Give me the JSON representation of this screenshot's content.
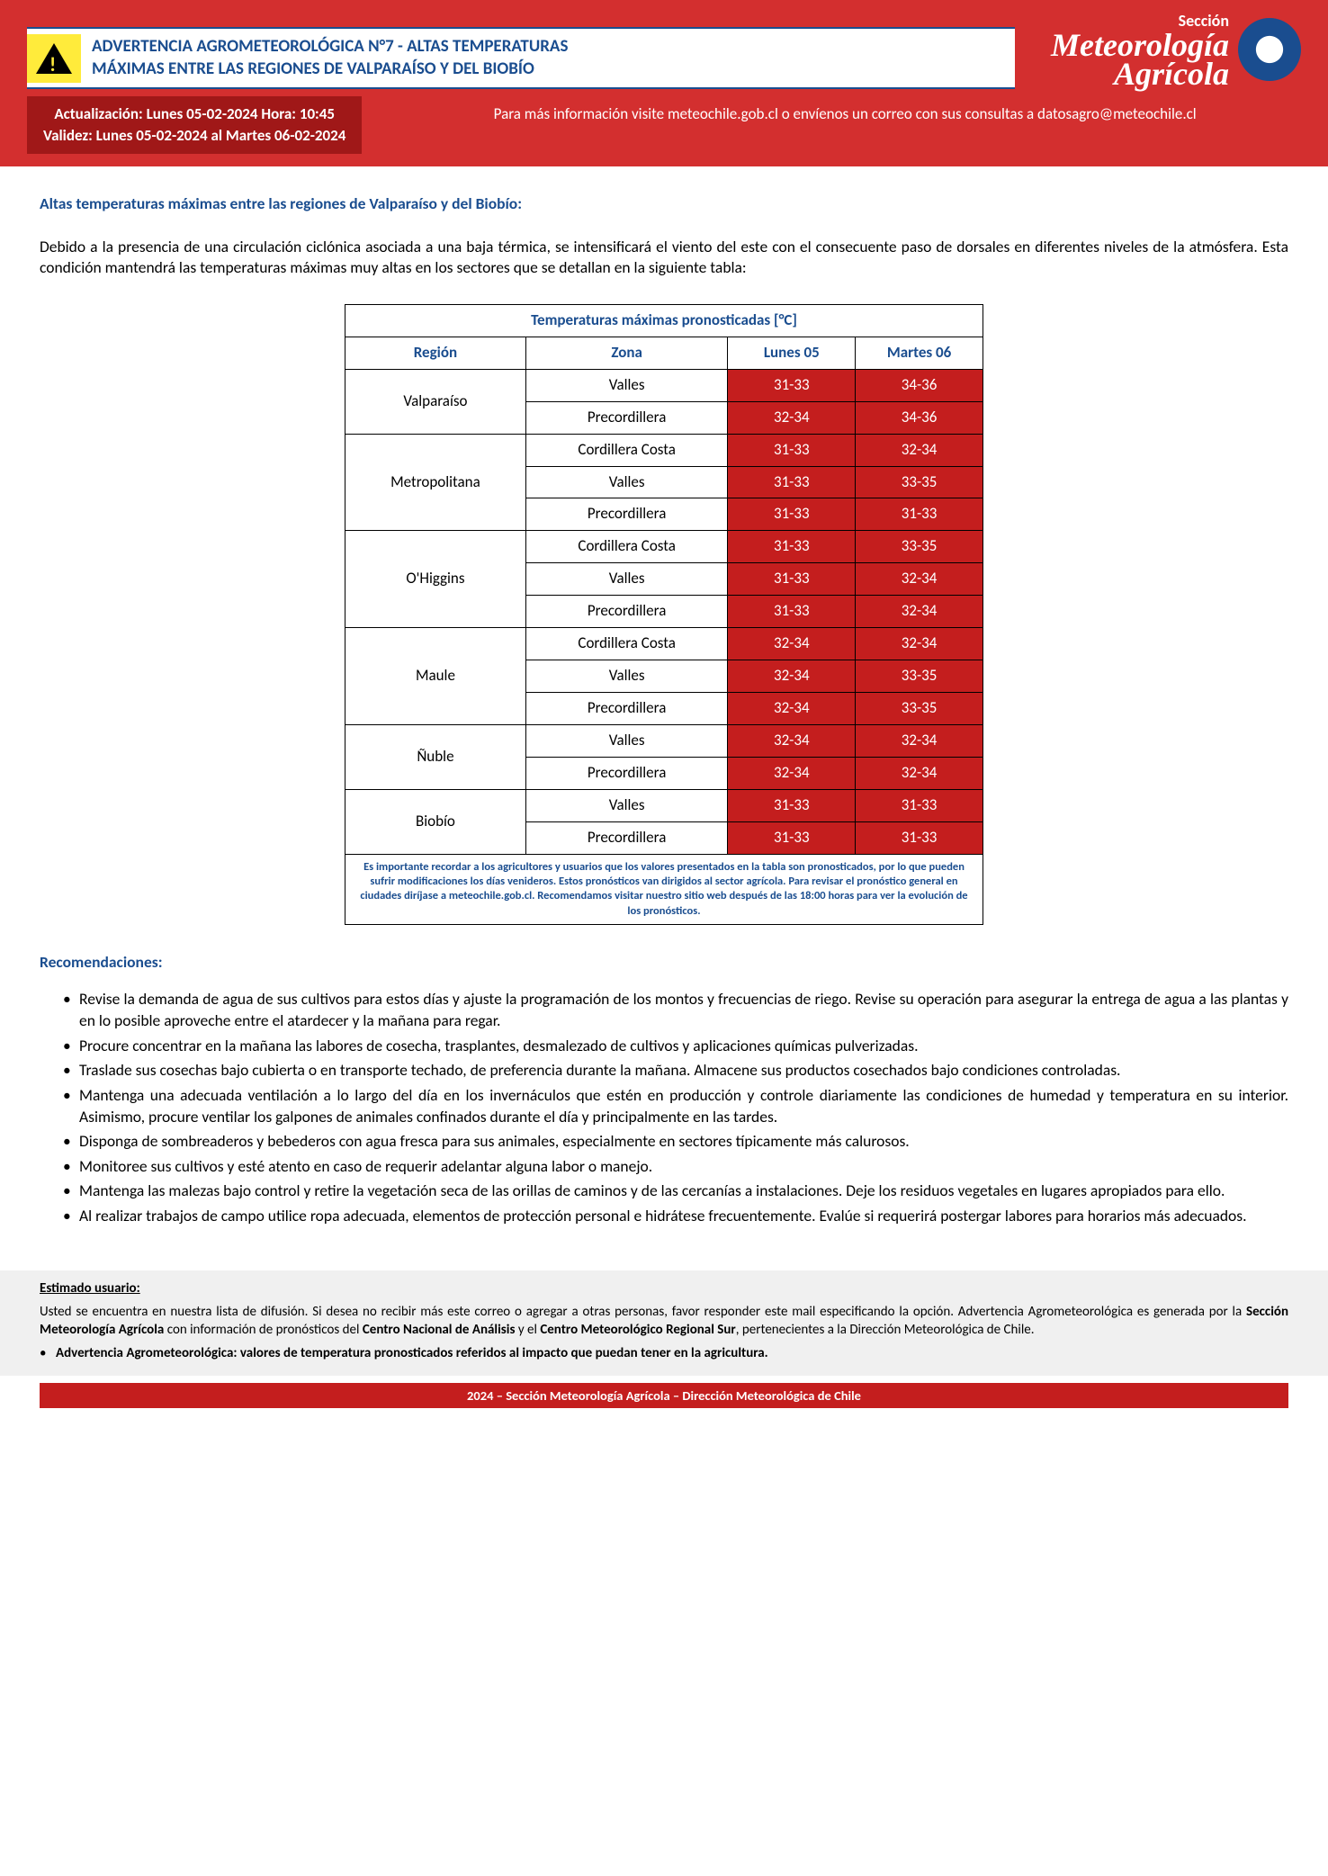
{
  "header": {
    "title_line1": "ADVERTENCIA AGROMETEOROLÓGICA N°7 - ALTAS TEMPERATURAS",
    "title_line2": "MÁXIMAS ENTRE LAS REGIONES DE VALPARAÍSO Y DEL BIOBÍO",
    "seccion": "Sección",
    "brand1": "Meteorología",
    "brand2": "Agrícola"
  },
  "infobar": {
    "update": "Actualización: Lunes 05-02-2024  Hora: 10:45",
    "validity": "Validez: Lunes 05-02-2024 al Martes 06-02-2024",
    "more_info": "Para más información visite meteochile.gob.cl o envíenos un correo con sus consultas a datosagro@meteochile.cl"
  },
  "body": {
    "subtitle": "Altas temperaturas máximas entre las regiones de Valparaíso y del Biobío:",
    "intro": "Debido a la presencia de una circulación ciclónica asociada a una baja térmica, se intensificará el viento del este con el consecuente paso de dorsales en diferentes niveles de la atmósfera. Esta condición mantendrá las temperaturas máximas muy altas en los sectores que se detallan en la siguiente tabla:"
  },
  "table": {
    "caption": "Temperaturas máximas pronosticadas [°C]",
    "col_region": "Región",
    "col_zone": "Zona",
    "col_d1": "Lunes 05",
    "col_d2": "Martes 06",
    "cell_bg": "#c41e1e",
    "cell_fg": "#ffffff",
    "hdr_fg": "#1a4d8f",
    "regions": [
      {
        "name": "Valparaíso",
        "rows": [
          {
            "zone": "Valles",
            "d1": "31-33",
            "d2": "34-36"
          },
          {
            "zone": "Precordillera",
            "d1": "32-34",
            "d2": "34-36"
          }
        ]
      },
      {
        "name": "Metropolitana",
        "rows": [
          {
            "zone": "Cordillera Costa",
            "d1": "31-33",
            "d2": "32-34"
          },
          {
            "zone": "Valles",
            "d1": "31-33",
            "d2": "33-35"
          },
          {
            "zone": "Precordillera",
            "d1": "31-33",
            "d2": "31-33"
          }
        ]
      },
      {
        "name": "O'Higgins",
        "rows": [
          {
            "zone": "Cordillera Costa",
            "d1": "31-33",
            "d2": "33-35"
          },
          {
            "zone": "Valles",
            "d1": "31-33",
            "d2": "32-34"
          },
          {
            "zone": "Precordillera",
            "d1": "31-33",
            "d2": "32-34"
          }
        ]
      },
      {
        "name": "Maule",
        "rows": [
          {
            "zone": "Cordillera Costa",
            "d1": "32-34",
            "d2": "32-34"
          },
          {
            "zone": "Valles",
            "d1": "32-34",
            "d2": "33-35"
          },
          {
            "zone": "Precordillera",
            "d1": "32-34",
            "d2": "33-35"
          }
        ]
      },
      {
        "name": "Ñuble",
        "rows": [
          {
            "zone": "Valles",
            "d1": "32-34",
            "d2": "32-34"
          },
          {
            "zone": "Precordillera",
            "d1": "32-34",
            "d2": "32-34"
          }
        ]
      },
      {
        "name": "Biobío",
        "rows": [
          {
            "zone": "Valles",
            "d1": "31-33",
            "d2": "31-33"
          },
          {
            "zone": "Precordillera",
            "d1": "31-33",
            "d2": "31-33"
          }
        ]
      }
    ],
    "note": "Es importante recordar a los agricultores y usuarios que los valores presentados en la tabla son pronosticados, por lo que pueden sufrir modificaciones los días venideros. Estos pronósticos van dirigidos al sector agrícola. Para revisar el pronóstico general en ciudades diríjase a meteochile.gob.cl. Recomendamos visitar nuestro sitio web después de las 18:00 horas para ver la evolución de los pronósticos."
  },
  "recs": {
    "title": "Recomendaciones:",
    "items": [
      "Revise la demanda de agua de sus cultivos para estos días y ajuste la programación de los montos y frecuencias de riego. Revise su operación para asegurar la entrega de agua a las plantas y en lo posible aproveche entre el atardecer y la mañana para regar.",
      "Procure concentrar en la mañana las labores de cosecha, trasplantes, desmalezado de cultivos y aplicaciones químicas pulverizadas.",
      "Traslade sus cosechas bajo cubierta o en transporte techado, de preferencia durante la mañana. Almacene sus productos cosechados bajo condiciones controladas.",
      "Mantenga una adecuada ventilación a lo largo del día en los invernáculos que estén en producción y controle diariamente las condiciones de humedad y temperatura en su interior. Asimismo, procure ventilar los galpones de animales confinados durante el día y principalmente en las tardes.",
      "Disponga de sombreaderos y bebederos con agua fresca para sus animales, especialmente en sectores típicamente más calurosos.",
      "Monitoree sus cultivos y esté atento en caso de requerir adelantar alguna labor o manejo.",
      "Mantenga las malezas bajo control y retire la vegetación seca de las orillas de caminos y de las cercanías a instalaciones. Deje los residuos vegetales en lugares apropiados para ello.",
      "Al realizar trabajos de campo utilice ropa adecuada, elementos de protección personal e hidrátese frecuentemente.  Evalúe si requerirá postergar labores para horarios más adecuados."
    ]
  },
  "footer": {
    "title": "Estimado usuario:",
    "text_pre": "Usted se encuentra en nuestra lista de difusión. Si desea no recibir más este correo o agregar a otras personas, favor responder este mail especificando la opción. Advertencia Agrometeorológica es generada por la ",
    "bold1": "Sección Meteorología Agrícola",
    "text_mid1": " con información de pronósticos del ",
    "bold2": "Centro Nacional de Análisis",
    "text_mid2": " y el ",
    "bold3": "Centro Meteorológico Regional Sur",
    "text_post": ", pertenecientes a la Dirección Meteorológica de Chile.",
    "bullet": "Advertencia Agrometeorológica: valores de temperatura pronosticados referidos al impacto que puedan tener en la agricultura."
  },
  "bottom": "2024 – Sección Meteorología Agrícola – Dirección Meteorológica de Chile"
}
